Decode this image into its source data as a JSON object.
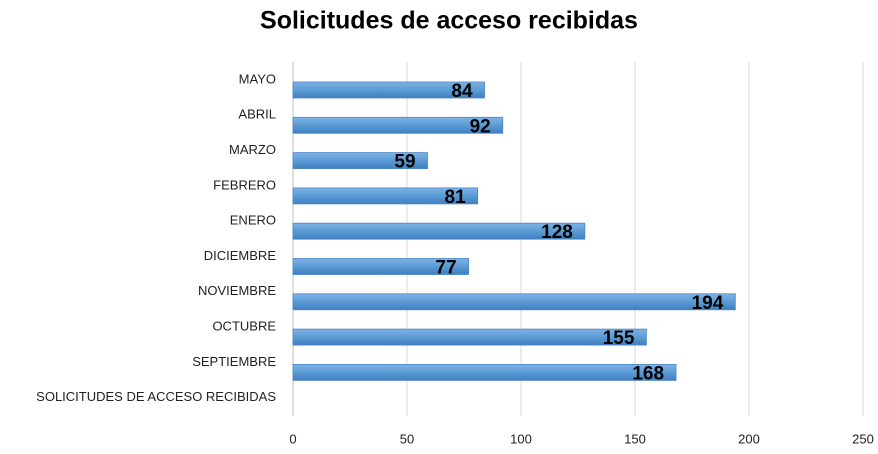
{
  "chart_data": {
    "type": "bar",
    "orientation": "horizontal",
    "title": "Solicitudes de acceso recibidas",
    "categories": [
      "MAYO",
      "ABRIL",
      "MARZO",
      "FEBRERO",
      "ENERO",
      "DICIEMBRE",
      "NOVIEMBRE",
      "OCTUBRE",
      "SEPTIEMBRE",
      "SOLICITUDES DE ACCESO RECIBIDAS"
    ],
    "values": [
      84,
      92,
      59,
      81,
      128,
      77,
      194,
      155,
      168,
      null
    ],
    "color": "#5b9bd5",
    "xlim": [
      0,
      250
    ],
    "xticks": [
      0,
      50,
      100,
      150,
      200,
      250
    ],
    "grid": true
  }
}
